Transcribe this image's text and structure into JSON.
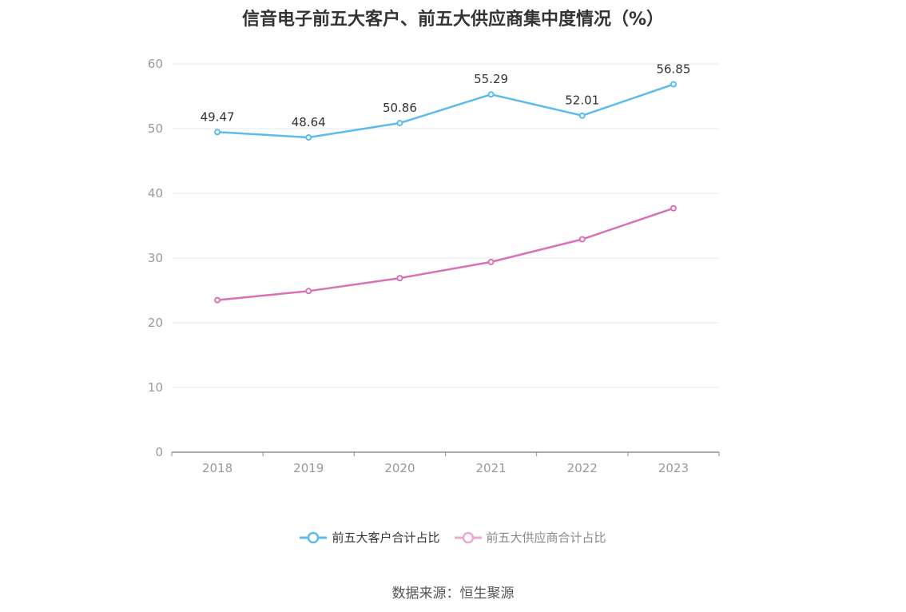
{
  "title": "信音电子前五大客户、前五大供应商集中度情况（%）",
  "source": "数据来源：恒生聚源",
  "colors": {
    "customer": "#5bbcec",
    "supplier": "#d872b5",
    "grid": "#e6e8f0",
    "axis": "#8a8e99"
  },
  "chart_data": {
    "type": "line",
    "title": "信音电子前五大客户、前五大供应商集中度情况（%）",
    "categories": [
      "2018",
      "2019",
      "2020",
      "2021",
      "2022",
      "2023"
    ],
    "ylim": [
      0,
      60
    ],
    "yticks": [
      0,
      10,
      20,
      30,
      40,
      50,
      60
    ],
    "xlabel": "",
    "ylabel": "",
    "legend_position": "bottom",
    "series": [
      {
        "name": "前五大客户合计占比",
        "values": [
          49.47,
          48.64,
          50.86,
          55.29,
          52.01,
          56.85
        ],
        "labels": [
          "49.47",
          "48.64",
          "50.86",
          "55.29",
          "52.01",
          "56.85"
        ],
        "show_labels": true
      },
      {
        "name": "前五大供应商合计占比",
        "values": [
          23.5,
          24.9,
          26.9,
          29.4,
          32.9,
          37.7
        ],
        "show_labels": false
      }
    ]
  }
}
